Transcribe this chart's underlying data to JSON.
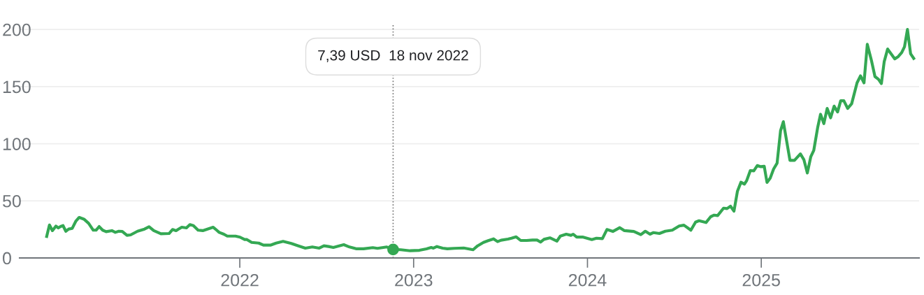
{
  "chart_data": {
    "type": "line",
    "x": [
      2020.889,
      2020.905,
      2020.922,
      2020.942,
      2020.956,
      2020.969,
      2020.983,
      2020.999,
      2021.016,
      2021.036,
      2021.056,
      2021.076,
      2021.103,
      2021.13,
      2021.157,
      2021.173,
      2021.191,
      2021.211,
      2021.231,
      2021.264,
      2021.284,
      2021.304,
      2021.324,
      2021.351,
      2021.372,
      2021.412,
      2021.452,
      2021.478,
      2021.505,
      2021.546,
      2021.593,
      2021.613,
      2021.633,
      2021.666,
      2021.693,
      2021.713,
      2021.733,
      2021.76,
      2021.787,
      2021.814,
      2021.847,
      2021.867,
      2021.881,
      2021.908,
      2021.928,
      2021.975,
      2022.001,
      2022.028,
      2022.041,
      2022.068,
      2022.109,
      2022.136,
      2022.176,
      2022.209,
      2022.249,
      2022.296,
      2022.337,
      2022.377,
      2022.417,
      2022.457,
      2022.484,
      2022.511,
      2022.538,
      2022.598,
      2022.631,
      2022.672,
      2022.712,
      2022.765,
      2022.792,
      2022.846,
      2022.882,
      2022.926,
      2022.98,
      2023.033,
      2023.074,
      2023.101,
      2023.114,
      2023.134,
      2023.167,
      2023.194,
      2023.234,
      2023.288,
      2023.342,
      2023.368,
      2023.402,
      2023.429,
      2023.46,
      2023.483,
      2023.503,
      2023.543,
      2023.563,
      2023.59,
      2023.616,
      2023.65,
      2023.684,
      2023.71,
      2023.73,
      2023.75,
      2023.784,
      2023.824,
      2023.844,
      2023.878,
      2023.905,
      2023.918,
      2023.938,
      2023.972,
      2024.025,
      2024.052,
      2024.086,
      2024.112,
      2024.146,
      2024.186,
      2024.213,
      2024.267,
      2024.307,
      2024.333,
      2024.36,
      2024.38,
      2024.414,
      2024.448,
      2024.488,
      2024.528,
      2024.555,
      2024.595,
      2024.622,
      2024.642,
      2024.682,
      2024.709,
      2024.729,
      2024.749,
      2024.783,
      2024.803,
      2024.823,
      2024.843,
      2024.863,
      2024.883,
      2024.903,
      2024.916,
      2024.937,
      2024.957,
      2024.977,
      2024.997,
      2025.017,
      2025.033,
      2025.051,
      2025.071,
      2025.091,
      2025.111,
      2025.127,
      2025.165,
      2025.191,
      2025.225,
      2025.245,
      2025.265,
      2025.285,
      2025.302,
      2025.325,
      2025.341,
      2025.36,
      2025.379,
      2025.399,
      2025.419,
      2025.439,
      2025.457,
      2025.475,
      2025.497,
      2025.52,
      2025.551,
      2025.571,
      2025.591,
      2025.61,
      2025.634,
      2025.654,
      2025.674,
      2025.691,
      2025.707,
      2025.727,
      2025.768,
      2025.788,
      2025.808,
      2025.824,
      2025.841,
      2025.859,
      2025.877
    ],
    "series": [
      {
        "color": "#34a853",
        "values": [
          18.8,
          28.9,
          23.9,
          27.9,
          26.3,
          27.5,
          28.3,
          23.4,
          25.3,
          25.9,
          32,
          35.5,
          34,
          30.4,
          24.3,
          24.3,
          27.5,
          24.3,
          23,
          23.9,
          22.4,
          23.4,
          23.2,
          19.8,
          20.2,
          23.4,
          25.3,
          27.3,
          23.9,
          21.2,
          21.4,
          24.9,
          23.9,
          26.9,
          26.3,
          29.2,
          28.3,
          24.3,
          23.9,
          25.3,
          26.9,
          24.3,
          22.4,
          20.8,
          19.1,
          19.1,
          18.2,
          16.1,
          16.1,
          13.6,
          13,
          11.2,
          11.2,
          13,
          14.5,
          12.7,
          10.6,
          8.6,
          9.6,
          8.6,
          10.6,
          10,
          9.2,
          11.6,
          9.6,
          8,
          8,
          9,
          8.4,
          9.6,
          7.39,
          7.2,
          6.3,
          6.7,
          8,
          9.2,
          8.6,
          10,
          8.6,
          8,
          8.4,
          8.7,
          7.2,
          10.6,
          13.6,
          15.1,
          16.7,
          14.3,
          15.5,
          16.5,
          17.3,
          18.5,
          15.3,
          15.3,
          15.7,
          15.7,
          13.9,
          16.3,
          17.6,
          14.7,
          19.1,
          20.8,
          19.8,
          20.8,
          18.3,
          18.3,
          16.1,
          17.3,
          16.9,
          24.9,
          23.2,
          26.5,
          23.9,
          23.2,
          20.4,
          23.4,
          20.8,
          22.2,
          21.4,
          23.4,
          24.3,
          28,
          28.7,
          24.3,
          31.4,
          32.6,
          31,
          36.1,
          37.5,
          37.1,
          43.6,
          43.2,
          45.3,
          41,
          58.5,
          66.3,
          64.6,
          67.7,
          76.5,
          76.3,
          80.9,
          79.9,
          80.3,
          66.1,
          69.7,
          77.9,
          83,
          111.5,
          119.3,
          85.4,
          85.4,
          91.1,
          86.1,
          74.4,
          88.7,
          94.2,
          114.6,
          125.8,
          117.6,
          130.9,
          122.7,
          132.9,
          127.8,
          137.6,
          137.6,
          130.9,
          135,
          153.3,
          159.4,
          153.3,
          187,
          172.7,
          158.8,
          156.4,
          152.7,
          171.7,
          182.9,
          174.3,
          176.3,
          179.8,
          184.9,
          200,
          178.8,
          174.7
        ]
      }
    ],
    "xlim": [
      2020.733,
      2025.908
    ],
    "xticks": [
      2022,
      2023,
      2024,
      2025
    ],
    "ylim": [
      0,
      205
    ],
    "yticks": [
      0,
      50,
      100,
      150,
      200
    ],
    "grid": "y",
    "legend": false,
    "marker": "none",
    "line_style": "solid",
    "ref_lines": [
      {
        "axis": "x",
        "value": 2022.882,
        "color": "#757575",
        "line_style": "dotted"
      }
    ],
    "annotations": [
      "7,39 USD  18 nov 2022"
    ]
  }
}
